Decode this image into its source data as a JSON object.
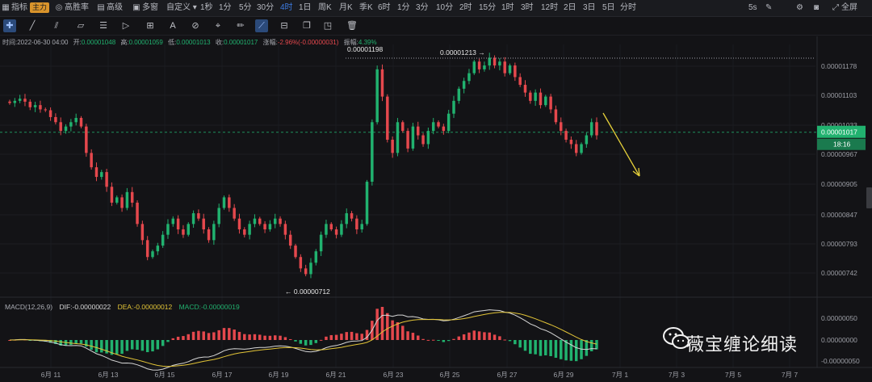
{
  "toolbar": {
    "indicator": "指标",
    "main": "主力",
    "high_win": "高胜率",
    "advanced": "高级",
    "multi_window": "多窗",
    "custom": "自定义",
    "intervals": [
      "1秒",
      "1分",
      "5分",
      "30分",
      "4时",
      "1日",
      "周K",
      "月K",
      "季K",
      "6时",
      "1分",
      "3分",
      "10分",
      "2时",
      "15分",
      "1时",
      "3时",
      "12时",
      "2日",
      "3日",
      "5日",
      "分时"
    ],
    "active_interval": "4时",
    "refresh": "5s",
    "fullscreen": "全屏"
  },
  "info": {
    "time_label": "时间:",
    "time": "2022-06-30 04:00",
    "open_label": "开:",
    "open": "0.00001048",
    "high_label": "高:",
    "high": "0.00001059",
    "low_label": "低:",
    "low": "0.00001013",
    "close_label": "收:",
    "close": "0.00001017",
    "change_label": "涨幅:",
    "change": "-2.96%(-0.00000031)",
    "amp_label": "振幅:",
    "amp": "4.39%"
  },
  "price_axis": [
    "0.00001178",
    "0.00001103",
    "0.00001033",
    "0.00000967",
    "0.00000905",
    "0.00000847",
    "0.00000793",
    "0.00000742"
  ],
  "current_price": "0.00001017",
  "countdown": "18:16",
  "annotations": {
    "high_1": "0.00001198",
    "high_2": "0.00001213 →",
    "low": "← 0.00000712"
  },
  "macd_axis": [
    "0.00000050",
    "0.00000000",
    "-0.00000050"
  ],
  "macd_info": {
    "name": "MACD(12,26,9)",
    "dif": "DIF:-0.00000022",
    "dea": "DEA:-0.00000012",
    "macd": "MACD:-0.00000019"
  },
  "date_axis": [
    "6月 11",
    "6月 13",
    "6月 15",
    "6月 17",
    "6月 19",
    "6月 21",
    "6月 23",
    "6月 25",
    "6月 27",
    "6月 29",
    "7月 1",
    "7月 3",
    "7月 5",
    "7月 7"
  ],
  "watermark": "薇宝缠论细读",
  "colors": {
    "up": "#21b26f",
    "down": "#e5484d",
    "accent": "#3d7be0",
    "arrow": "#e6d13a",
    "price_tag": "#21b26f"
  },
  "chart_data": {
    "type": "candlestick",
    "ylim": [
      7e-06,
      1.23e-05
    ],
    "closes": [
      1.085e-05,
      1.09e-05,
      1.095e-05,
      1.088e-05,
      1.075e-05,
      1.08e-05,
      1.07e-05,
      1.068e-05,
      1.052e-05,
      1.04e-05,
      1.02e-05,
      1.03e-05,
      1.04e-05,
      1.05e-05,
      1.03e-05,
      9.7e-06,
      9.4e-06,
      9.2e-06,
      9.3e-06,
      9e-06,
      8.7e-06,
      8.8e-06,
      8.6e-06,
      8.9e-06,
      8.7e-06,
      8.3e-06,
      8e-06,
      7.7e-06,
      7.8e-06,
      7.9e-06,
      8.1e-06,
      8.3e-06,
      8.4e-06,
      8.2e-06,
      8.1e-06,
      8.3e-06,
      8.5e-06,
      8.4e-06,
      8.2e-06,
      8e-06,
      8.3e-06,
      8.6e-06,
      8.8e-06,
      8.6e-06,
      8.4e-06,
      8.2e-06,
      8.1e-06,
      8.3e-06,
      8.4e-06,
      8.3e-06,
      8.2e-06,
      8.3e-06,
      8.4e-06,
      8.3e-06,
      8.1e-06,
      7.9e-06,
      7.7e-06,
      7.5e-06,
      7.4e-06,
      7.6e-06,
      7.8e-06,
      8.1e-06,
      8.3e-06,
      8.2e-06,
      8.1e-06,
      8.3e-06,
      8.5e-06,
      8.4e-06,
      8.2e-06,
      8.3e-06,
      9.1e-06,
      1.04e-05,
      1.17e-05,
      1.1e-05,
      1e-05,
      9.7e-06,
      1.04e-05,
      1.02e-05,
      9.8e-06,
      1.03e-05,
      1.01e-05,
      9.9e-06,
      1.02e-05,
      1.04e-05,
      1.03e-05,
      1.02e-05,
      1.06e-05,
      1.09e-05,
      1.12e-05,
      1.14e-05,
      1.16e-05,
      1.19e-05,
      1.17e-05,
      1.18e-05,
      1.2e-05,
      1.18e-05,
      1.19e-05,
      1.16e-05,
      1.18e-05,
      1.15e-05,
      1.13e-05,
      1.11e-05,
      1.09e-05,
      1.11e-05,
      1.08e-05,
      1.1e-05,
      1.07e-05,
      1.04e-05,
      1.02e-05,
      1e-05,
      9.9e-06,
      9.7e-06,
      9.9e-06,
      1.01e-05,
      1.04e-05,
      1.01e-05
    ]
  }
}
